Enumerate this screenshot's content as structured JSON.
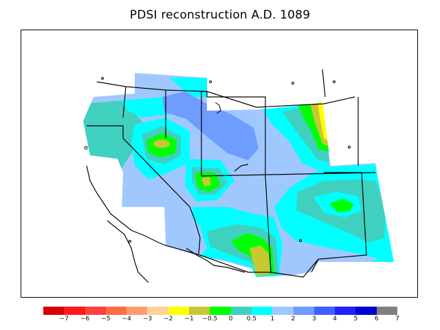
{
  "title": "PDSI reconstruction A.D. 1089",
  "colorbar": {
    "colors": [
      "#d80000",
      "#ff1a1a",
      "#ff4040",
      "#ff6c40",
      "#ff9c6e",
      "#ffd29a",
      "#ffff00",
      "#c8c832",
      "#00ff00",
      "#40d0c0",
      "#00ffff",
      "#a0c8ff",
      "#6e9cff",
      "#4060ff",
      "#2020ff",
      "#0000d0",
      "#808080"
    ],
    "labels": [
      "−7",
      "−6",
      "−5",
      "−4",
      "−3",
      "−2",
      "−1",
      "−0.5",
      "0",
      "0.5",
      "1",
      "2",
      "3",
      "4",
      "5",
      "6",
      "7"
    ]
  },
  "map": {
    "palette": {
      "dry_yellow": "#ffff00",
      "olive": "#c8c832",
      "green": "#00ff00",
      "teal": "#40d0c0",
      "cyan": "#00ffff",
      "light_blue": "#a0c8ff",
      "medium_blue": "#6e9cff"
    }
  }
}
